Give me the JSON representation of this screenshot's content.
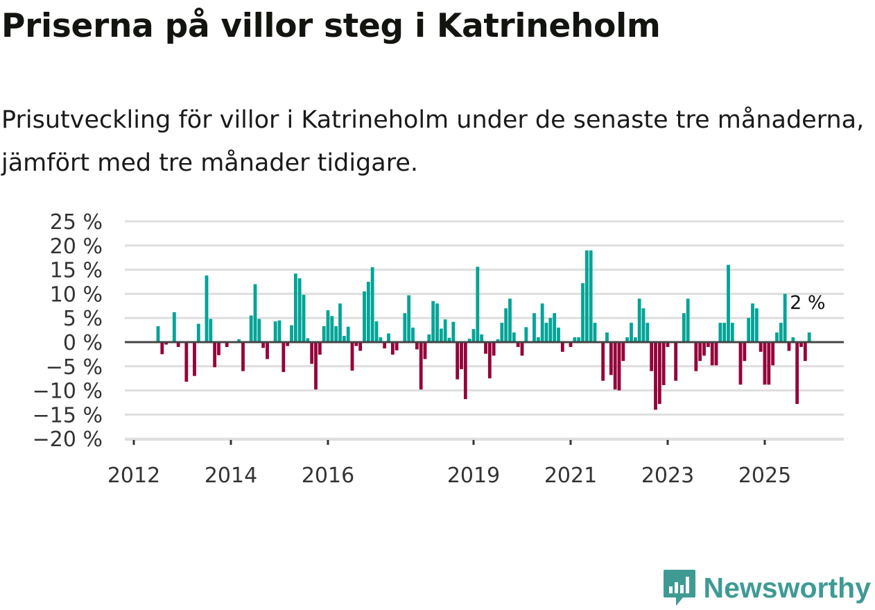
{
  "title": "Priserna på villor steg i Katrineholm",
  "subtitle": "Prisutveckling för villor i Katrineholm under de senaste tre månaderna, jämfört med tre månader tidigare.",
  "brand": "Newsworthy",
  "colors": {
    "positive": "#00a497",
    "negative": "#95003a",
    "grid": "#dedede",
    "zero": "#444444",
    "brand": "#3f9a94"
  },
  "chart_data": {
    "type": "bar",
    "title": "Priserna på villor steg i Katrineholm",
    "xlabel": "",
    "ylabel": "",
    "unit": "%",
    "ylim": [
      -20,
      25
    ],
    "yticks": [
      25,
      20,
      15,
      10,
      5,
      0,
      -5,
      -10,
      -15,
      -20
    ],
    "ytick_labels": [
      "25 %",
      "20 %",
      "15 %",
      "10 %",
      "5 %",
      "0 %",
      "−5 %",
      "−10 %",
      "−15 %",
      "−20 %"
    ],
    "xticks": [
      {
        "label": "2012",
        "year": 2012
      },
      {
        "label": "2014",
        "year": 2014
      },
      {
        "label": "2016",
        "year": 2016
      },
      {
        "label": "2019",
        "year": 2019
      },
      {
        "label": "2021",
        "year": 2021
      },
      {
        "label": "2023",
        "year": 2023
      },
      {
        "label": "2025",
        "year": 2025
      }
    ],
    "x_start": "2012-07",
    "frequency": "monthly",
    "values": [
      3.3,
      -2.5,
      -0.5,
      null,
      6.2,
      -1,
      null,
      -8.2,
      null,
      -7,
      3.8,
      null,
      13.8,
      4.8,
      -5.2,
      -2.7,
      null,
      -1,
      null,
      null,
      0.6,
      -6,
      null,
      5.5,
      12,
      4.8,
      -1.2,
      -3.5,
      null,
      4.3,
      4.5,
      -6.2,
      -0.8,
      3.5,
      14.2,
      13.2,
      9.8,
      0.8,
      -4.5,
      -9.8,
      -2.6,
      3.3,
      6.6,
      5.4,
      3.3,
      8,
      1.3,
      3.2,
      -5.9,
      -0.8,
      -1.8,
      10.5,
      12.5,
      15.5,
      4.3,
      1,
      -1.3,
      1.8,
      -2.6,
      -1.7,
      null,
      6,
      9.7,
      3,
      -1.5,
      -9.8,
      -3.5,
      1.6,
      8.5,
      8,
      2.8,
      4.7,
      0.9,
      4.2,
      -7.7,
      -5.6,
      -11.8,
      0.7,
      2.7,
      15.6,
      1.6,
      -2.4,
      -7.5,
      -2.8,
      0.6,
      4,
      7,
      9,
      2,
      -1,
      -2.8,
      3.1,
      null,
      6,
      1,
      8,
      4,
      5,
      6,
      3,
      -2,
      null,
      -1,
      1,
      1,
      12.2,
      19,
      19,
      4,
      null,
      -8,
      2,
      -6.8,
      -9.8,
      -10,
      -3.9,
      1,
      4,
      1,
      9,
      7,
      4,
      -6,
      -14,
      -12.8,
      -8.9,
      -1,
      null,
      -8,
      null,
      6,
      9,
      null,
      -6,
      -3.9,
      -2.8,
      -1,
      -4.8,
      -4.8,
      4,
      4,
      16,
      4,
      null,
      -8.8,
      -3.9,
      5,
      8,
      7,
      -2,
      -8.8,
      -8.8,
      -4.8,
      2,
      4,
      10,
      -1.8,
      1,
      -12.8,
      -1,
      -3.9,
      2
    ],
    "annotation": {
      "label": "2 %",
      "target": "last"
    },
    "grid": true,
    "legend": "none"
  }
}
